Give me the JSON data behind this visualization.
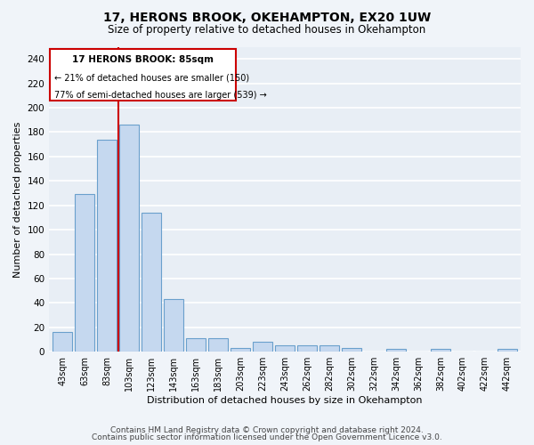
{
  "title": "17, HERONS BROOK, OKEHAMPTON, EX20 1UW",
  "subtitle": "Size of property relative to detached houses in Okehampton",
  "xlabel": "Distribution of detached houses by size in Okehampton",
  "ylabel": "Number of detached properties",
  "footer_line1": "Contains HM Land Registry data © Crown copyright and database right 2024.",
  "footer_line2": "Contains public sector information licensed under the Open Government Licence v3.0.",
  "categories": [
    "43sqm",
    "63sqm",
    "83sqm",
    "103sqm",
    "123sqm",
    "143sqm",
    "163sqm",
    "183sqm",
    "203sqm",
    "223sqm",
    "243sqm",
    "262sqm",
    "282sqm",
    "302sqm",
    "322sqm",
    "342sqm",
    "362sqm",
    "382sqm",
    "402sqm",
    "422sqm",
    "442sqm"
  ],
  "values": [
    16,
    129,
    174,
    186,
    114,
    43,
    11,
    11,
    3,
    8,
    5,
    5,
    5,
    3,
    0,
    2,
    0,
    2,
    0,
    0,
    2
  ],
  "bar_color": "#c5d8ef",
  "bar_edge_color": "#6aa0cc",
  "annotation_text_line1": "17 HERONS BROOK: 85sqm",
  "annotation_text_line2": "← 21% of detached houses are smaller (150)",
  "annotation_text_line3": "77% of semi-detached houses are larger (539) →",
  "ylim": [
    0,
    250
  ],
  "yticks": [
    0,
    20,
    40,
    60,
    80,
    100,
    120,
    140,
    160,
    180,
    200,
    220,
    240
  ],
  "background_color": "#f0f4f9",
  "plot_bg_color": "#e8eef5",
  "grid_color": "#ffffff",
  "red_line_color": "#cc0000",
  "box_edge_color": "#cc0000",
  "box_fill_color": "#ffffff"
}
